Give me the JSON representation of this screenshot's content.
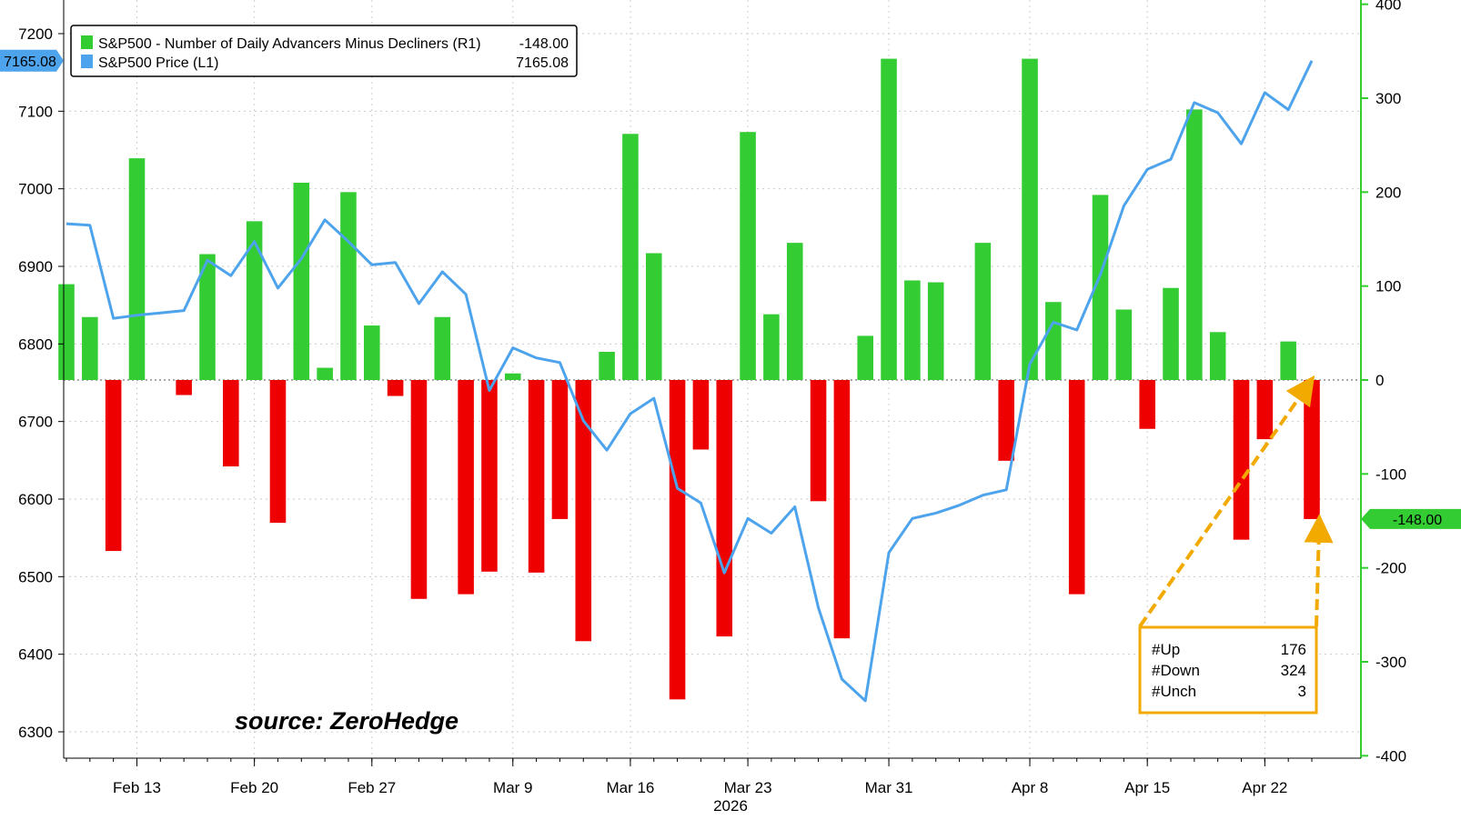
{
  "chart_data": {
    "type": "bar",
    "title": "",
    "year_label": "2026",
    "x_tick_labels": [
      "Feb 13",
      "Feb 20",
      "Feb 27",
      "Mar 9",
      "Mar 16",
      "Mar 23",
      "Mar 31",
      "Apr 8",
      "Apr 15",
      "Apr 22"
    ],
    "left_axis": {
      "ticks": [
        6300,
        6400,
        6500,
        6600,
        6700,
        6800,
        6900,
        7000,
        7100,
        7200
      ],
      "ylim": [
        6280,
        7250
      ]
    },
    "right_axis": {
      "ticks": [
        400,
        300,
        200,
        100,
        0,
        -100,
        -200,
        -300,
        -400
      ],
      "ylim": [
        -400,
        400
      ]
    },
    "grid": true,
    "legend_position": "top-left",
    "legend": [
      {
        "name": "S&P500 - Number of Daily Advancers Minus Decliners (R1)",
        "value": "-148.00",
        "color": "#33cc33"
      },
      {
        "name": "S&P500 Price (L1)",
        "value": "7165.08",
        "color": "#4da3ec"
      }
    ],
    "series": [
      {
        "name": "S&P500 - Number of Daily Advancers Minus Decliners (R1)",
        "axis": "right",
        "type": "bar",
        "positive_color": "#33cc33",
        "negative_color": "#ee0000",
        "values": [
          102,
          67,
          -182,
          236,
          0,
          -16,
          134,
          -92,
          169,
          -152,
          210,
          13,
          200,
          58,
          -17,
          -233,
          67,
          -228,
          -204,
          7,
          -205,
          -148,
          -278,
          30,
          262,
          135,
          -340,
          -74,
          -273,
          264,
          70,
          146,
          -129,
          -275,
          47,
          342,
          106,
          104,
          0,
          146,
          -86,
          342,
          83,
          -228,
          197,
          75,
          -52,
          98,
          288,
          51,
          -170,
          -63,
          41,
          -148
        ]
      },
      {
        "name": "S&P500 Price (L1)",
        "axis": "left",
        "type": "line",
        "color": "#4da3ec",
        "values": [
          6955,
          6953,
          6833,
          6837,
          6840,
          6843,
          6908,
          6888,
          6932,
          6872,
          6910,
          6960,
          6932,
          6902,
          6905,
          6852,
          6893,
          6864,
          6740,
          6795,
          6782,
          6776,
          6701,
          6663,
          6710,
          6730,
          6614,
          6595,
          6505,
          6575,
          6556,
          6590,
          6460,
          6368,
          6340,
          6531,
          6575,
          6582,
          6592,
          6605,
          6612,
          6774,
          6828,
          6818,
          6889,
          6978,
          7025,
          7038,
          7111,
          7098,
          7058,
          7124,
          7102,
          7165.08
        ]
      }
    ],
    "annotations": {
      "last_left_value": "7165.08",
      "last_right_value": "-148.00",
      "stats_box": [
        {
          "label": "#Up",
          "value": "176"
        },
        {
          "label": "#Down",
          "value": "324"
        },
        {
          "label": "#Unch",
          "value": "3"
        }
      ],
      "source": "source: ZeroHedge"
    }
  }
}
